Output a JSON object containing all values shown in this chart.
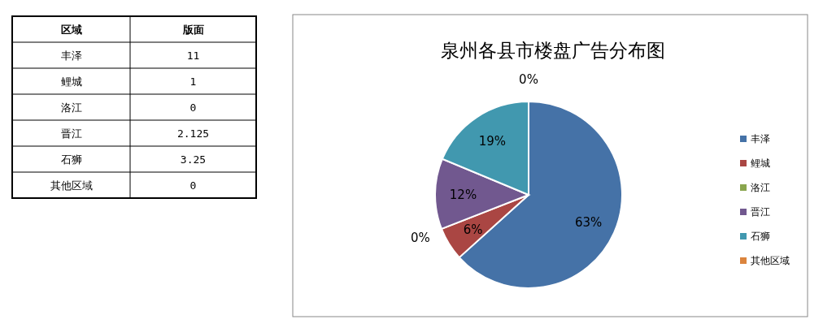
{
  "chart_data": [
    {
      "type": "other",
      "xlabel": "区域",
      "ylabel": "版面",
      "categories": [
        "丰泽",
        "鲤城",
        "洛江",
        "晋江",
        "石狮",
        "其他区域"
      ],
      "values": [
        11,
        1,
        0,
        2.125,
        3.25,
        0
      ],
      "data_labels": true
    },
    {
      "type": "pie",
      "title": "泉州各县市楼盘广告分布图",
      "categories": [
        "丰泽",
        "鲤城",
        "洛江",
        "晋江",
        "石狮",
        "其他区域"
      ],
      "values": [
        63.3,
        5.76,
        0,
        12.23,
        18.71,
        0
      ],
      "value_labels": [
        "63%",
        "6%",
        "0%",
        "12%",
        "19%",
        "0%"
      ],
      "colors": [
        "#4572a7",
        "#aa4643",
        "#89a54e",
        "#71588f",
        "#4198af",
        "#db843d"
      ],
      "legend": "right"
    }
  ]
}
